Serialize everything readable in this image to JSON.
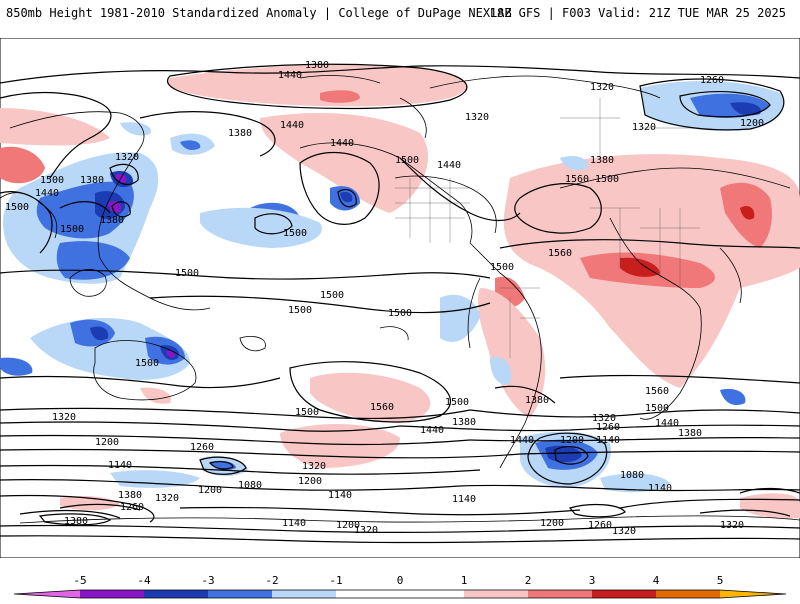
{
  "header": {
    "title": "850mb Height 1981-2010 Standardized Anomaly | College of DuPage NEXLAB",
    "run_info": "18Z GFS | F003 Valid: 21Z TUE MAR 25 2025"
  },
  "colors": {
    "neg5": "#e066e6",
    "neg4": "#8a14c8",
    "neg3": "#1c3cb4",
    "neg2": "#3f72e0",
    "neg1": "#b9d7f6",
    "pos1": "#f9c6c6",
    "pos2": "#f07878",
    "pos3": "#c81e1e",
    "pos4": "#e06a00",
    "pos5": "#ffb400",
    "contour": "#000000"
  },
  "colorbar": {
    "ticks": [
      "-5",
      "-4",
      "-3",
      "-2",
      "-1",
      "0",
      "1",
      "2",
      "3",
      "4",
      "5"
    ]
  },
  "contour_labels": [
    "1380",
    "1440",
    "1320",
    "1260",
    "1200",
    "1440",
    "1320",
    "1380",
    "1500",
    "1560",
    "1440",
    "1500",
    "1320",
    "1440",
    "1380",
    "1320",
    "1500",
    "1440",
    "1380",
    "1500",
    "1380",
    "1500",
    "1500",
    "1560",
    "1500",
    "1500",
    "1500",
    "1500",
    "1500",
    "1560",
    "1500",
    "1500",
    "1440",
    "1380",
    "1500",
    "1560",
    "1500",
    "1440",
    "1380",
    "1320",
    "1320",
    "1260",
    "1200",
    "1140",
    "1320",
    "1260",
    "1140",
    "1200",
    "1080",
    "1140",
    "1320",
    "1200",
    "1260",
    "1380",
    "1200",
    "1080",
    "1140",
    "1140",
    "1200",
    "1320",
    "1200",
    "1260",
    "1320",
    "1380",
    "1140",
    "1380",
    "1440",
    "1320"
  ]
}
